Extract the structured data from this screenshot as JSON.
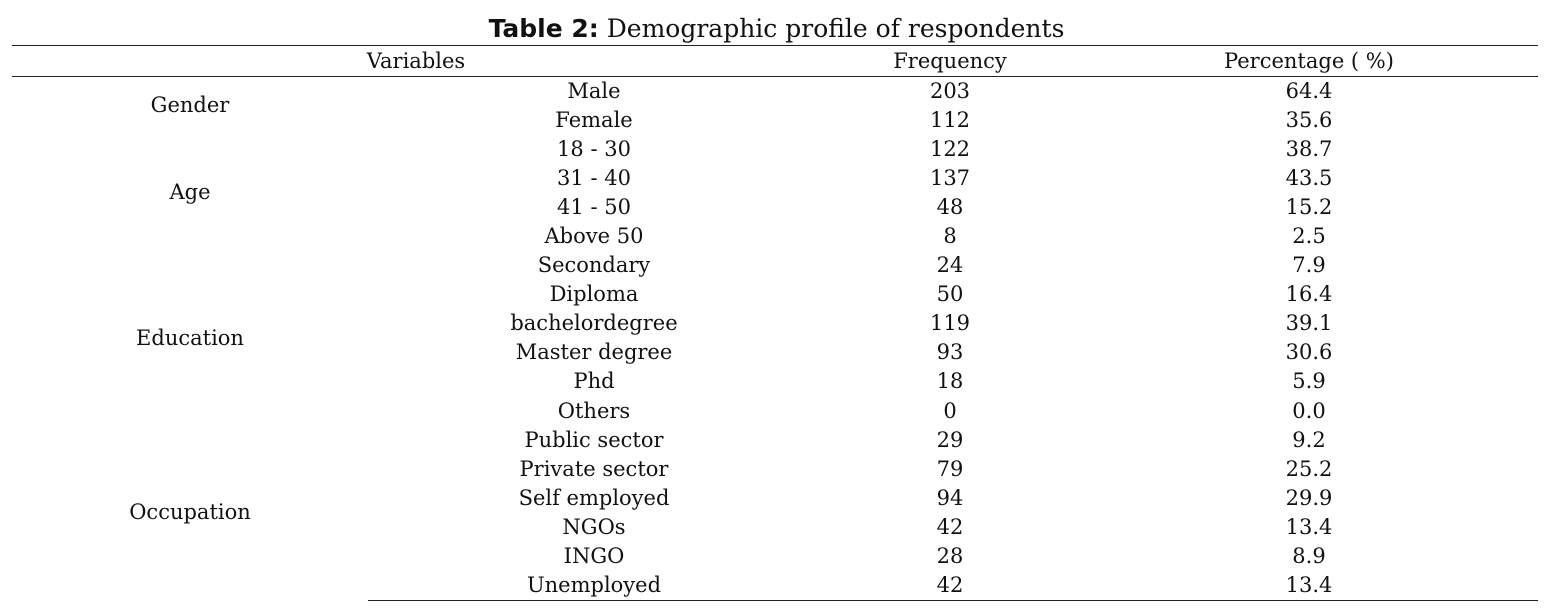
{
  "caption": {
    "label": "Table 2:",
    "text": "Demographic profile of respondents"
  },
  "headers": {
    "variables": "Variables",
    "frequency": "Frequency",
    "percentage": "Percentage ( %)"
  },
  "groups": [
    {
      "name": "Gender",
      "rows": [
        {
          "label": "Male",
          "frequency": "203",
          "percentage": "64.4"
        },
        {
          "label": "Female",
          "frequency": "112",
          "percentage": "35.6"
        }
      ]
    },
    {
      "name": "Age",
      "rows": [
        {
          "label": "18 - 30",
          "frequency": "122",
          "percentage": "38.7"
        },
        {
          "label": "31 - 40",
          "frequency": "137",
          "percentage": "43.5"
        },
        {
          "label": "41 - 50",
          "frequency": "48",
          "percentage": "15.2"
        },
        {
          "label": "Above 50",
          "frequency": "8",
          "percentage": "2.5"
        }
      ]
    },
    {
      "name": "Education",
      "rows": [
        {
          "label": "Secondary",
          "frequency": "24",
          "percentage": "7.9"
        },
        {
          "label": "Diploma",
          "frequency": "50",
          "percentage": "16.4"
        },
        {
          "label": "bachelordegree",
          "frequency": "119",
          "percentage": "39.1"
        },
        {
          "label": "Master degree",
          "frequency": "93",
          "percentage": "30.6"
        },
        {
          "label": "Phd",
          "frequency": "18",
          "percentage": "5.9"
        },
        {
          "label": "Others",
          "frequency": "0",
          "percentage": "0.0"
        }
      ]
    },
    {
      "name": "Occupation",
      "rows": [
        {
          "label": "Public sector",
          "frequency": "29",
          "percentage": "9.2"
        },
        {
          "label": "Private sector",
          "frequency": "79",
          "percentage": "25.2"
        },
        {
          "label": "Self employed",
          "frequency": "94",
          "percentage": "29.9"
        },
        {
          "label": "NGOs",
          "frequency": "42",
          "percentage": "13.4"
        },
        {
          "label": "INGO",
          "frequency": "28",
          "percentage": "8.9"
        },
        {
          "label": "Unemployed",
          "frequency": "42",
          "percentage": "13.4"
        }
      ]
    }
  ]
}
